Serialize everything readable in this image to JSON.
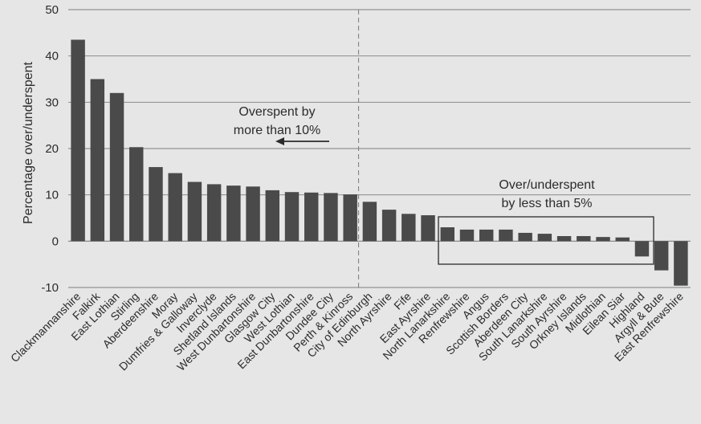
{
  "chart_data": {
    "type": "bar",
    "title": "",
    "xlabel": "",
    "ylabel": "Percentage over/underspent",
    "ylim": [
      -10,
      50
    ],
    "yticks": [
      -10,
      0,
      10,
      20,
      30,
      40,
      50
    ],
    "grid": true,
    "categories": [
      "Clackmannanshire",
      "Falkirk",
      "East Lothian",
      "Stirling",
      "Aberdeenshire",
      "Moray",
      "Dumfries & Galloway",
      "Inverclyde",
      "Shetland Islands",
      "West Dunbartonshire",
      "Glasgow City",
      "West Lothian",
      "East Dunbartonshire",
      "Dundee City",
      "Perth & Kinross",
      "City of Edinburgh",
      "North Ayrshire",
      "Fife",
      "East Ayrshire",
      "North Lanarkshire",
      "Renfrewshire",
      "Angus",
      "Scottish Borders",
      "Aberdeen City",
      "South Lanarkshire",
      "South Ayrshire",
      "Orkney Islands",
      "Midlothian",
      "Eilean Siar",
      "Highland",
      "Argyll & Bute",
      "East Renfrewshire"
    ],
    "values": [
      43.5,
      35,
      32,
      20.3,
      16,
      14.7,
      12.8,
      12.3,
      12,
      11.8,
      11,
      10.6,
      10.5,
      10.4,
      10.1,
      8.5,
      6.8,
      5.9,
      5.6,
      3,
      2.5,
      2.5,
      2.5,
      1.8,
      1.6,
      1.1,
      1.1,
      0.9,
      0.8,
      -3.3,
      -6.3,
      -9.6
    ],
    "bar_color": "#4a4a4a",
    "annotations": [
      {
        "lines": [
          "Overspent by",
          "more than 10%"
        ],
        "arrow": "left"
      },
      {
        "lines": [
          "Over/underspent",
          "by less than 5%"
        ],
        "box": true
      }
    ]
  }
}
